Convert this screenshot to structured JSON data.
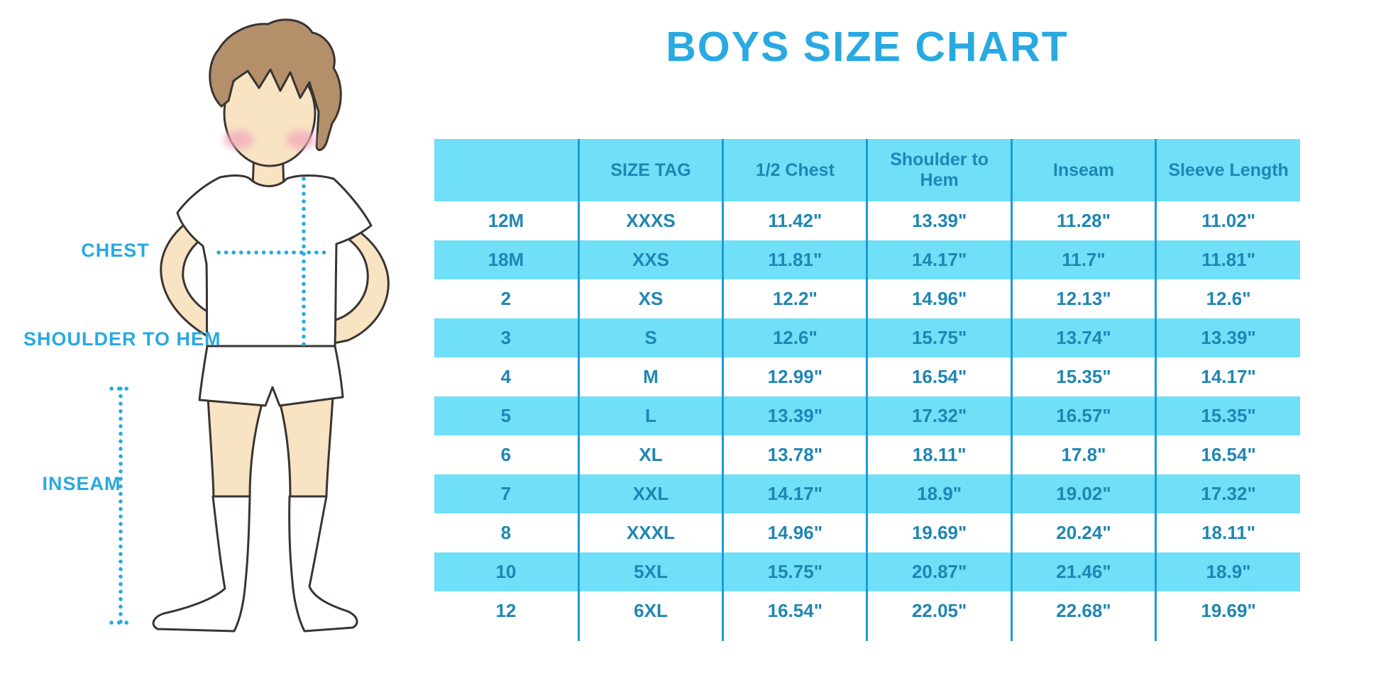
{
  "title": "BOYS SIZE CHART",
  "illustration": {
    "labels": {
      "chest": "CHEST",
      "shoulder_to_hem": "SHOULDER TO HEM",
      "inseam": "INSEAM"
    }
  },
  "colors": {
    "accent": "#29A9E1",
    "table_text": "#1F86B3",
    "row_highlight": "#70DFF8",
    "grid_line": "#1D9AD7",
    "skin": "#F8E3C2",
    "hair": "#B3906A",
    "blush": "#F2A7BC",
    "outline": "#3A3433"
  },
  "chart_data": {
    "type": "table",
    "title": "BOYS SIZE CHART",
    "columns": [
      "",
      "SIZE TAG",
      "1/2 Chest",
      "Shoulder to Hem",
      "Inseam",
      "Sleeve Length"
    ],
    "rows": [
      [
        "12M",
        "XXXS",
        "11.42\"",
        "13.39\"",
        "11.28\"",
        "11.02\""
      ],
      [
        "18M",
        "XXS",
        "11.81\"",
        "14.17\"",
        "11.7\"",
        "11.81\""
      ],
      [
        "2",
        "XS",
        "12.2\"",
        "14.96\"",
        "12.13\"",
        "12.6\""
      ],
      [
        "3",
        "S",
        "12.6\"",
        "15.75\"",
        "13.74\"",
        "13.39\""
      ],
      [
        "4",
        "M",
        "12.99\"",
        "16.54\"",
        "15.35\"",
        "14.17\""
      ],
      [
        "5",
        "L",
        "13.39\"",
        "17.32\"",
        "16.57\"",
        "15.35\""
      ],
      [
        "6",
        "XL",
        "13.78\"",
        "18.11\"",
        "17.8\"",
        "16.54\""
      ],
      [
        "7",
        "XXL",
        "14.17\"",
        "18.9\"",
        "19.02\"",
        "17.32\""
      ],
      [
        "8",
        "XXXL",
        "14.96\"",
        "19.69\"",
        "20.24\"",
        "18.11\""
      ],
      [
        "10",
        "5XL",
        "15.75\"",
        "20.87\"",
        "21.46\"",
        "18.9\""
      ],
      [
        "12",
        "6XL",
        "16.54\"",
        "22.05\"",
        "22.68\"",
        "19.69\""
      ]
    ],
    "row_striping": "alternating white / light blue, starting white",
    "measurement_unit": "inches"
  }
}
